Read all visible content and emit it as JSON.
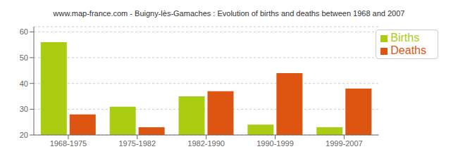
{
  "chart_data": {
    "type": "bar",
    "title": "www.map-france.com - Buigny-lès-Gamaches : Evolution of births and deaths between 1968 and 2007",
    "categories": [
      "1968-1975",
      "1975-1982",
      "1982-1990",
      "1990-1999",
      "1999-2007"
    ],
    "series": [
      {
        "name": "Births",
        "color": "#aacc11",
        "values": [
          56,
          31,
          35,
          24,
          23
        ]
      },
      {
        "name": "Deaths",
        "color": "#dd5511",
        "values": [
          28,
          23,
          37,
          44,
          38
        ]
      }
    ],
    "ylim": [
      20,
      62
    ],
    "yticks": [
      20,
      30,
      40,
      50,
      60
    ],
    "grid": true,
    "legend": "upper right"
  }
}
